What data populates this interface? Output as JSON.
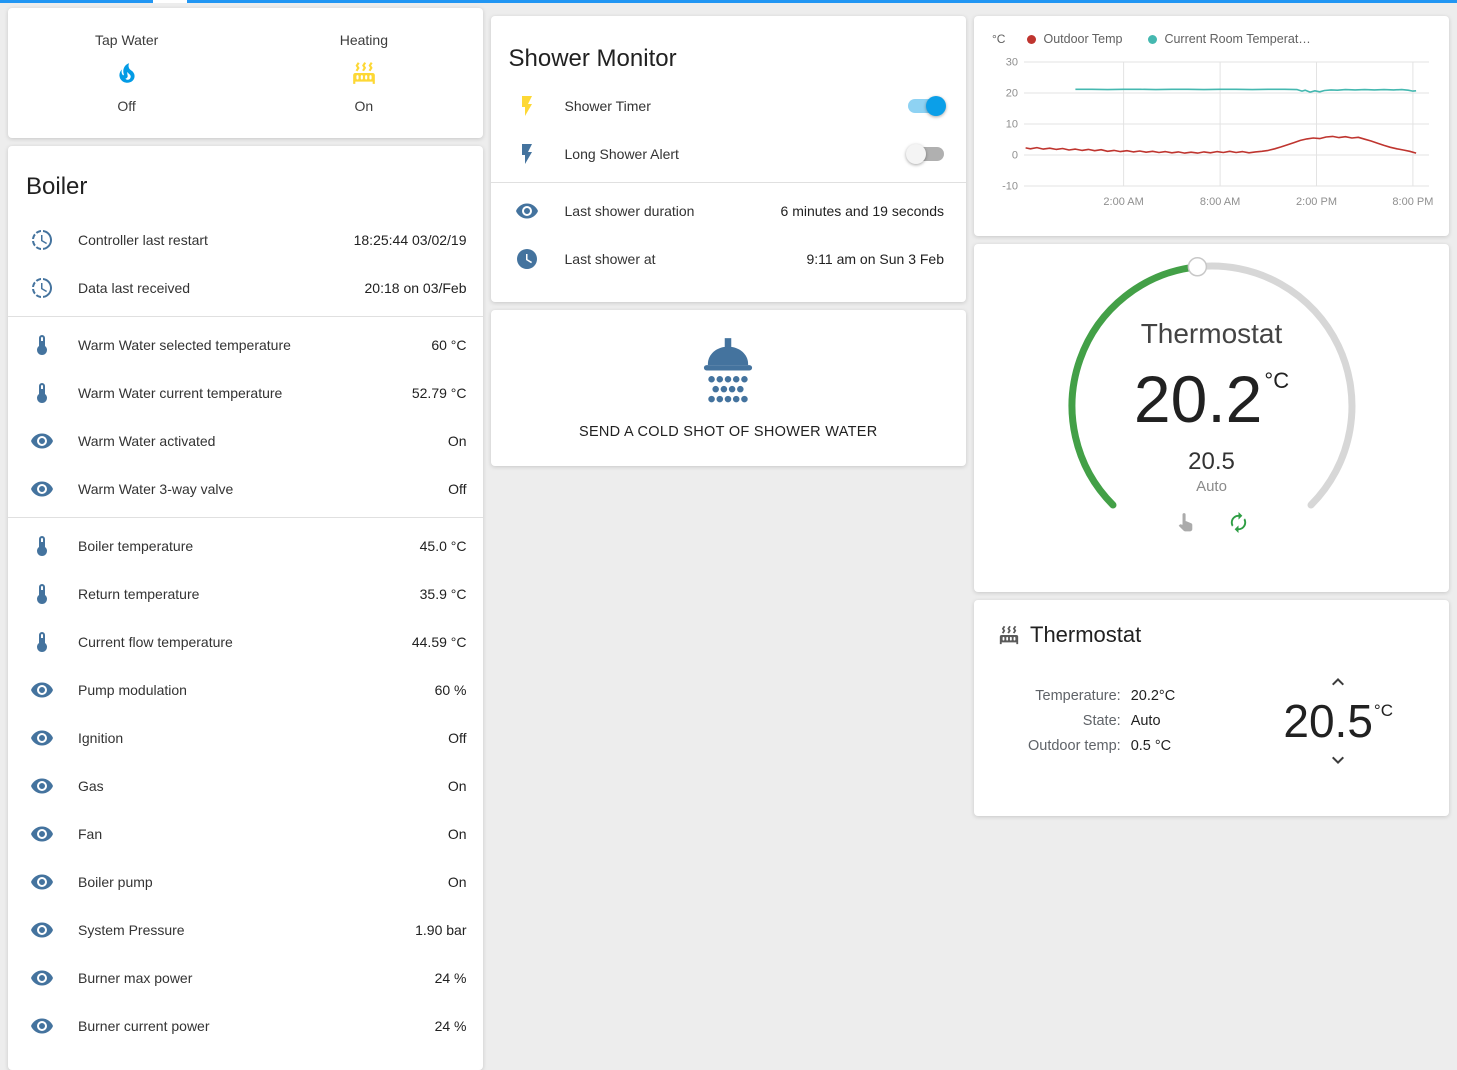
{
  "topbar": {
    "color": "#2196f3"
  },
  "theme": {
    "icon_color": "#44739e",
    "active_yellow": "#fdd835",
    "toggle_on_color": "#0b9fe8",
    "dial_green": "#43a047",
    "dial_track": "#d7d7d7"
  },
  "glance": {
    "items": [
      {
        "name": "Tap Water",
        "state": "Off",
        "icon": "fire",
        "icon_color": "#039be5"
      },
      {
        "name": "Heating",
        "state": "On",
        "icon": "radiator",
        "icon_color": "#fdd835"
      }
    ]
  },
  "boiler": {
    "title": "Boiler",
    "groups": [
      {
        "rows": [
          {
            "icon": "progress-clock",
            "label": "Controller last restart",
            "value": "18:25:44 03/02/19"
          },
          {
            "icon": "progress-clock",
            "label": "Data last received",
            "value": "20:18 on 03/Feb"
          }
        ]
      },
      {
        "rows": [
          {
            "icon": "thermometer",
            "label": "Warm Water selected temperature",
            "value": "60 °C"
          },
          {
            "icon": "thermometer",
            "label": "Warm Water current temperature",
            "value": "52.79 °C"
          },
          {
            "icon": "eye",
            "label": "Warm Water activated",
            "value": "On"
          },
          {
            "icon": "eye",
            "label": "Warm Water 3-way valve",
            "value": "Off"
          }
        ]
      },
      {
        "rows": [
          {
            "icon": "thermometer",
            "label": "Boiler temperature",
            "value": "45.0 °C"
          },
          {
            "icon": "thermometer",
            "label": "Return temperature",
            "value": "35.9 °C"
          },
          {
            "icon": "thermometer",
            "label": "Current flow temperature",
            "value": "44.59 °C"
          },
          {
            "icon": "eye",
            "label": "Pump modulation",
            "value": "60 %"
          },
          {
            "icon": "eye",
            "label": "Ignition",
            "value": "Off"
          },
          {
            "icon": "eye",
            "label": "Gas",
            "value": "On"
          },
          {
            "icon": "eye",
            "label": "Fan",
            "value": "On"
          },
          {
            "icon": "eye",
            "label": "Boiler pump",
            "value": "On"
          },
          {
            "icon": "eye",
            "label": "System Pressure",
            "value": "1.90 bar"
          },
          {
            "icon": "eye",
            "label": "Burner max power",
            "value": "24 %"
          },
          {
            "icon": "eye",
            "label": "Burner current power",
            "value": "24 %"
          }
        ]
      }
    ]
  },
  "shower_monitor": {
    "title": "Shower Monitor",
    "toggle_rows": [
      {
        "icon": "flash",
        "icon_color": "#fdd835",
        "label": "Shower Timer",
        "on": true
      },
      {
        "icon": "flash",
        "icon_color": "#44739e",
        "label": "Long Shower Alert",
        "on": false
      }
    ],
    "info_rows": [
      {
        "icon": "eye",
        "label": "Last shower duration",
        "value": "6 minutes and 19 seconds"
      },
      {
        "icon": "clock",
        "label": "Last shower at",
        "value": "9:11 am on Sun 3 Feb"
      }
    ]
  },
  "shower_button": {
    "label": "SEND A COLD SHOT OF SHOWER WATER",
    "icon": "shower-head",
    "icon_color": "#44739e"
  },
  "chart_data": {
    "type": "line",
    "title": "",
    "ylabel": "°C",
    "ylim": [
      -10,
      30
    ],
    "yticks": [
      30,
      20,
      10,
      0,
      -10
    ],
    "xlim": [
      -4.2,
      21
    ],
    "x_unit": "hours (0 = midnight)",
    "xticks": [
      {
        "x": 2,
        "label": "2:00 AM"
      },
      {
        "x": 8,
        "label": "8:00 AM"
      },
      {
        "x": 14,
        "label": "2:00 PM"
      },
      {
        "x": 20,
        "label": "8:00 PM"
      }
    ],
    "grid": true,
    "legend_position": "top",
    "series": [
      {
        "name": "Outdoor Temp",
        "color": "#bf352f",
        "x": [
          -4.1,
          -3.8,
          -3.4,
          -3.0,
          -2.6,
          -2.2,
          -1.8,
          -1.4,
          -1.0,
          -0.6,
          -0.2,
          0.2,
          0.6,
          1.0,
          1.4,
          1.8,
          2.2,
          2.6,
          3.0,
          3.4,
          3.8,
          4.2,
          4.6,
          5.0,
          5.4,
          5.8,
          6.2,
          6.6,
          7.0,
          7.4,
          7.8,
          8.2,
          8.6,
          9.0,
          9.4,
          9.8,
          10.2,
          10.6,
          11.0,
          11.4,
          11.8,
          12.2,
          12.6,
          13.0,
          13.4,
          13.8,
          14.2,
          14.6,
          15.0,
          15.4,
          15.8,
          16.2,
          16.6,
          17.0,
          17.4,
          17.8,
          18.2,
          18.6,
          19.0,
          19.4,
          19.8,
          20.2
        ],
        "y": [
          2.3,
          2.0,
          2.4,
          1.9,
          2.2,
          1.8,
          2.1,
          1.6,
          1.9,
          1.5,
          1.8,
          1.4,
          1.7,
          1.2,
          1.5,
          1.1,
          1.4,
          1.0,
          1.3,
          0.9,
          1.2,
          0.8,
          1.1,
          0.7,
          1.0,
          0.6,
          0.9,
          0.6,
          1.0,
          0.7,
          1.1,
          0.8,
          1.2,
          0.8,
          1.1,
          0.7,
          1.0,
          1.2,
          1.5,
          2.0,
          2.6,
          3.3,
          4.0,
          4.7,
          5.2,
          5.5,
          5.3,
          5.8,
          6.0,
          5.6,
          5.9,
          5.5,
          5.7,
          5.1,
          4.5,
          3.8,
          3.1,
          2.5,
          2.0,
          1.6,
          1.2,
          0.6
        ]
      },
      {
        "name": "Current Room Temperat…",
        "color": "#45b8b0",
        "x": [
          -1.0,
          0,
          1,
          2,
          3,
          4,
          5,
          6,
          7,
          8,
          9,
          10,
          11,
          12,
          12.8,
          13.1,
          13.3,
          13.6,
          13.9,
          14.2,
          14.5,
          14.9,
          15.3,
          15.8,
          16.4,
          17.0,
          17.6,
          18.2,
          18.8,
          19.3,
          19.7,
          20.0,
          20.2
        ],
        "y": [
          21.2,
          21.2,
          21.1,
          21.2,
          21.2,
          21.1,
          21.2,
          21.2,
          21.1,
          21.2,
          21.2,
          21.1,
          21.2,
          21.2,
          21.1,
          20.6,
          20.9,
          20.3,
          20.7,
          20.4,
          20.8,
          21.0,
          20.9,
          21.1,
          21.0,
          21.1,
          21.0,
          21.1,
          21.0,
          21.1,
          20.9,
          20.6,
          20.7
        ]
      }
    ]
  },
  "thermostat_dial": {
    "title": "Thermostat",
    "current_temperature": "20.2",
    "unit": "°C",
    "target_temperature": "20.5",
    "mode": "Auto"
  },
  "thermostat_info": {
    "title": "Thermostat",
    "rows": [
      {
        "label": "Temperature:",
        "value": "20.2°C"
      },
      {
        "label": "State:",
        "value": "Auto"
      },
      {
        "label": "Outdoor temp:",
        "value": "0.5 °C"
      }
    ],
    "target_temperature": "20.5",
    "unit": "°C"
  }
}
